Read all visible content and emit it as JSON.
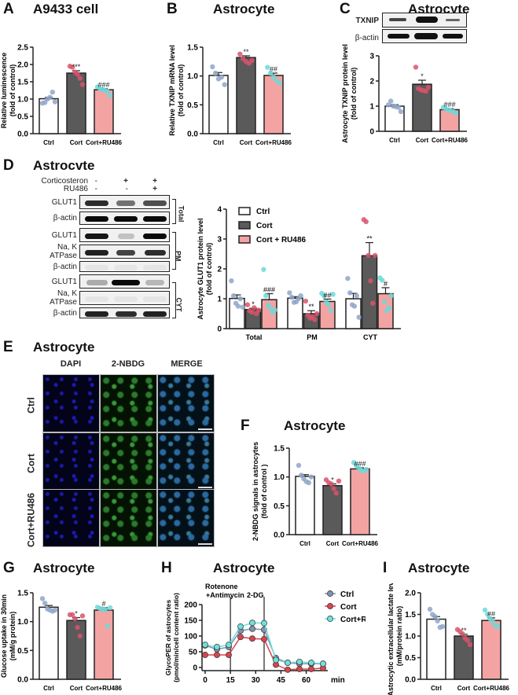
{
  "colors": {
    "ctrl_bar": "#ffffff",
    "cort_bar": "#5a5a5a",
    "ru_bar": "#f4a3a3",
    "ctrl_dot": "#8fa6c8",
    "cort_dot": "#d9536a",
    "ru_dot": "#6fd8d8",
    "axis": "#222222",
    "line_ctrl": "#7f93ad",
    "line_cort": "#d9454f",
    "line_ru": "#6fe0da"
  },
  "panels": {
    "A": {
      "letter": "A",
      "title": "A9433 cell"
    },
    "B": {
      "letter": "B",
      "title": "Astrocyte"
    },
    "C": {
      "letter": "C",
      "title": "Astrocyte",
      "blot_labels": [
        "TXNIP",
        "β-actin"
      ]
    },
    "D": {
      "letter": "D",
      "title": "Astrocvte",
      "treat_rows": [
        {
          "label": "Corticosteron",
          "signs": [
            "-",
            "+",
            "+"
          ]
        },
        {
          "label": "RU486",
          "signs": [
            "-",
            "-",
            "+"
          ]
        }
      ],
      "blot_labels": [
        "GLUT1",
        "β-actin",
        "GLUT1",
        "Na, K ATPase",
        "β-actin",
        "GLUT1",
        "Na, K ATPase",
        "β-actin"
      ],
      "fractions": [
        "Total",
        "PM",
        "CYT"
      ]
    },
    "E": {
      "letter": "E",
      "title": "Astrocyte",
      "columns": [
        "DAPI",
        "2-NBDG",
        "MERGE"
      ],
      "rows": [
        "Ctrl",
        "Cort",
        "Cort+RU486"
      ]
    },
    "F": {
      "letter": "F",
      "title": "Astrocyte"
    },
    "G": {
      "letter": "G",
      "title": "Astrocyte"
    },
    "H": {
      "letter": "H",
      "title": "Astrocyte",
      "annotations": [
        "Rotenone",
        "+Antimycin",
        "2-DG"
      ],
      "x_unit": "min"
    },
    "I": {
      "letter": "I",
      "title": "Astrocyte"
    }
  },
  "chart_data": [
    {
      "id": "A",
      "type": "bar",
      "title": "A9433 cell",
      "ylabel": "Relative luminescence (fold of control)",
      "categories": [
        "Ctrl",
        "Cort",
        "Cort+RU486"
      ],
      "values": [
        1.01,
        1.75,
        1.27
      ],
      "errors": [
        0.04,
        0.07,
        0.03
      ],
      "ylim": [
        0,
        2.5
      ],
      "yticks": [
        "0.0",
        "0.5",
        "1.0",
        "1.5",
        "2.0",
        "2.5"
      ],
      "yticks_v": [
        0,
        0.5,
        1,
        1.5,
        2,
        2.5
      ],
      "significance": [
        "",
        "***",
        "###"
      ],
      "points": [
        [
          0.88,
          0.9,
          1.0,
          1.05,
          1.2,
          0.92
        ],
        [
          1.95,
          1.92,
          1.78,
          1.72,
          1.6,
          1.42
        ],
        [
          1.35,
          1.3,
          1.28,
          1.25,
          1.22,
          1.1
        ]
      ]
    },
    {
      "id": "B",
      "type": "bar",
      "title": "Astrocyte",
      "ylabel": "Relative TXNIP mRNA level (fold of control)",
      "categories": [
        "Ctrl",
        "Cort",
        "Cort+RU486"
      ],
      "values": [
        1.01,
        1.32,
        1.01
      ],
      "errors": [
        0.05,
        0.03,
        0.04
      ],
      "ylim": [
        0,
        1.5
      ],
      "yticks": [
        "0.0",
        "0.5",
        "1.0",
        "1.5"
      ],
      "yticks_v": [
        0,
        0.5,
        1,
        1.5
      ],
      "significance": [
        "",
        "**",
        "##"
      ],
      "points": [
        [
          1.16,
          1.05,
          0.95,
          0.98,
          0.85
        ],
        [
          1.38,
          1.3,
          1.25,
          1.22,
          1.27
        ],
        [
          1.15,
          1.05,
          0.98,
          0.92,
          0.88
        ]
      ]
    },
    {
      "id": "C",
      "type": "bar",
      "title": "Astrocyte",
      "ylabel": "Astrocyte TXNIP protein level (fold of control)",
      "categories": [
        "Ctrl",
        "Cort",
        "Cort+RU486"
      ],
      "values": [
        1.0,
        1.87,
        0.86
      ],
      "errors": [
        0.06,
        0.16,
        0.04
      ],
      "ylim": [
        0,
        3
      ],
      "yticks": [
        "0",
        "1",
        "2",
        "3"
      ],
      "yticks_v": [
        0,
        1,
        2,
        3
      ],
      "significance": [
        "",
        "*",
        "###"
      ],
      "points": [
        [
          1.05,
          1.2,
          1.0,
          0.98,
          0.95,
          0.78
        ],
        [
          2.55,
          1.7,
          1.65,
          1.62,
          1.6,
          1.75
        ],
        [
          0.95,
          0.9,
          0.85,
          0.82,
          0.78,
          0.72
        ]
      ]
    },
    {
      "id": "D",
      "type": "bar",
      "title": "Astrocyte GLUT1",
      "ylabel": "Astrocyte GLUT1 protein level (fold of control)",
      "categories": [
        "Total",
        "PM",
        "CYT"
      ],
      "series": [
        {
          "name": "Ctrl",
          "values": [
            1.01,
            1.02,
            1.0
          ],
          "errors": [
            0.12,
            0.05,
            0.18
          ]
        },
        {
          "name": "Cort",
          "values": [
            0.64,
            0.5,
            2.44
          ],
          "errors": [
            0.04,
            0.1,
            0.44
          ]
        },
        {
          "name": "Cort + RU486",
          "values": [
            0.97,
            0.91,
            1.17
          ],
          "errors": [
            0.2,
            0.08,
            0.2
          ]
        }
      ],
      "significance": [
        [
          "",
          "*",
          "###"
        ],
        [
          "",
          "**",
          "##"
        ],
        [
          "",
          "**",
          "#"
        ]
      ],
      "ylim": [
        0,
        4
      ],
      "yticks": [
        "0",
        "1",
        "2",
        "3",
        "4"
      ],
      "yticks_v": [
        0,
        1,
        2,
        3,
        4
      ],
      "legend": [
        "Ctrl",
        "Cort",
        "Cort + RU486"
      ],
      "points": [
        [
          [
            1.6,
            1.1,
            0.85,
            0.75,
            1.0,
            0.72
          ],
          [
            0.8,
            0.6,
            0.55,
            0.7,
            0.5,
            0.62
          ],
          [
            1.98,
            1.1,
            0.78,
            0.7,
            0.55,
            0.62
          ]
        ],
        [
          [
            1.2,
            1.05,
            0.88,
            0.9,
            1.0,
            1.1
          ],
          [
            0.92,
            0.45,
            0.35,
            0.4,
            0.3,
            0.5
          ],
          [
            1.18,
            1.1,
            0.9,
            0.8,
            0.6,
            1.15
          ]
        ],
        [
          [
            1.68,
            1.2,
            0.8,
            0.75,
            1.1,
            0.38
          ],
          [
            3.65,
            3.58,
            2.45,
            1.6,
            0.85,
            2.45
          ],
          [
            1.7,
            1.62,
            0.9,
            0.6,
            0.7,
            1.1
          ]
        ]
      ]
    },
    {
      "id": "F",
      "type": "bar",
      "title": "Astrocyte",
      "ylabel": "2-NBDG signals in astrocytes (fold of control )",
      "categories": [
        "Ctrl",
        "Cort",
        "Cort+RU486"
      ],
      "values": [
        1.01,
        0.85,
        1.14
      ],
      "errors": [
        0.03,
        0.03,
        0.02
      ],
      "ylim": [
        0,
        1.5
      ],
      "yticks": [
        "0.0",
        "0.5",
        "1.0",
        "1.5"
      ],
      "yticks_v": [
        0,
        0.5,
        1,
        1.5
      ],
      "significance": [
        "",
        "*",
        "###"
      ],
      "points": [
        [
          1.2,
          1.03,
          0.97,
          0.92,
          0.9,
          1.0
        ],
        [
          0.95,
          0.9,
          0.88,
          0.8,
          0.72,
          0.93
        ],
        [
          1.25,
          1.2,
          1.15,
          1.12,
          1.1,
          1.13
        ]
      ]
    },
    {
      "id": "G",
      "type": "bar",
      "title": "Astrocyte",
      "ylabel": "Glucose uptake in 30min (mM/g protein)",
      "categories": [
        "Ctrl",
        "Cort",
        "Cort+RU486"
      ],
      "values": [
        1.25,
        1.02,
        1.2
      ],
      "errors": [
        0.03,
        0.05,
        0.04
      ],
      "ylim": [
        0,
        1.5
      ],
      "yticks": [
        "0.0",
        "0.5",
        "1.0",
        "1.5"
      ],
      "yticks_v": [
        0,
        0.5,
        1,
        1.5
      ],
      "significance": [
        "",
        "*",
        "#"
      ],
      "points": [
        [
          1.4,
          1.32,
          1.22,
          1.2,
          1.18,
          1.2
        ],
        [
          1.12,
          1.12,
          1.05,
          0.9,
          0.75,
          1.1
        ],
        [
          1.25,
          1.23,
          1.22,
          1.2,
          0.92,
          1.24
        ]
      ]
    },
    {
      "id": "H",
      "type": "line",
      "title": "Astrocyte",
      "ylabel": "GlycoPER of astrocytes (pmol/min/cell content ratio)",
      "xlabel": "min",
      "x": [
        0,
        7,
        14,
        21,
        28,
        35,
        42,
        49,
        56,
        63,
        70
      ],
      "xticks": [
        0,
        15,
        30,
        45,
        60
      ],
      "ylim": [
        -10,
        200
      ],
      "yticks": [
        0,
        50,
        100,
        150,
        200
      ],
      "series": [
        {
          "name": "Ctrl",
          "values": [
            70,
            58,
            65,
            117,
            123,
            120,
            30,
            15,
            12,
            12,
            12
          ]
        },
        {
          "name": "Cort",
          "values": [
            40,
            40,
            40,
            97,
            92,
            90,
            9,
            -7,
            -5,
            -5,
            -2
          ]
        },
        {
          "name": "Cort+RU486",
          "values": [
            72,
            65,
            72,
            130,
            142,
            141,
            24,
            15,
            18,
            15,
            12
          ]
        }
      ],
      "vlines": [
        {
          "x": 15,
          "label": "Rotenone +Antimycin"
        },
        {
          "x": 35,
          "label": "2-DG"
        }
      ],
      "legend": [
        "Ctrl",
        "Cort",
        "Cort+RU486"
      ]
    },
    {
      "id": "I",
      "type": "bar",
      "title": "Astrocyte",
      "ylabel": "Astrocytic extracellular lactate level (mM/protein ratio)",
      "categories": [
        "Ctrl",
        "Cort",
        "Cort+RU486"
      ],
      "values": [
        1.39,
        1.0,
        1.36
      ],
      "errors": [
        0.06,
        0.04,
        0.06
      ],
      "ylim": [
        0,
        2
      ],
      "yticks": [
        "0.0",
        "0.5",
        "1.0",
        "1.5",
        "2.0"
      ],
      "yticks_v": [
        0,
        0.5,
        1,
        1.5,
        2
      ],
      "significance": [
        "",
        "**",
        "##"
      ],
      "points": [
        [
          1.62,
          1.5,
          1.45,
          1.35,
          1.2,
          1.22
        ],
        [
          1.15,
          1.1,
          1.05,
          0.95,
          0.9,
          0.8
        ],
        [
          1.6,
          1.5,
          1.4,
          1.35,
          1.25,
          1.22
        ]
      ]
    }
  ]
}
